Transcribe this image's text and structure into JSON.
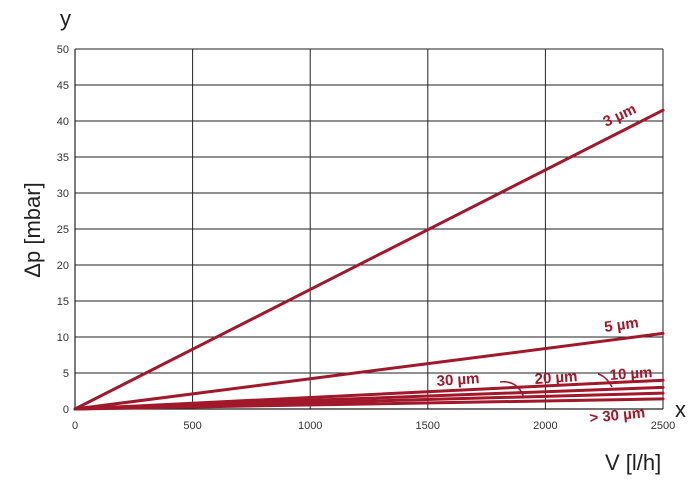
{
  "chart_data": {
    "type": "line",
    "title": "",
    "xlabel": "V [l/h]",
    "ylabel": "Δp [mbar]",
    "x_axis_letter": "x",
    "y_axis_letter": "y",
    "xlim": [
      0,
      2500
    ],
    "ylim": [
      0,
      50
    ],
    "x_ticks": [
      0,
      500,
      1000,
      1500,
      2000,
      2500
    ],
    "y_ticks": [
      0,
      5,
      10,
      15,
      20,
      25,
      30,
      35,
      40,
      45,
      50
    ],
    "grid": true,
    "legend": "inline labels",
    "color": "#a0182a",
    "series": [
      {
        "name": "3 µm",
        "x": [
          0,
          2500
        ],
        "y": [
          0,
          41.5
        ]
      },
      {
        "name": "5 µm",
        "x": [
          0,
          2500
        ],
        "y": [
          0,
          10.5
        ]
      },
      {
        "name": "10 µm",
        "x": [
          0,
          2500
        ],
        "y": [
          0,
          4.0
        ]
      },
      {
        "name": "20 µm",
        "x": [
          0,
          2500
        ],
        "y": [
          0,
          3.0
        ]
      },
      {
        "name": "30 µm",
        "x": [
          0,
          2500
        ],
        "y": [
          0,
          2.2
        ]
      },
      {
        "name": "> 30 µm",
        "x": [
          0,
          2500
        ],
        "y": [
          0,
          1.4
        ]
      }
    ]
  }
}
